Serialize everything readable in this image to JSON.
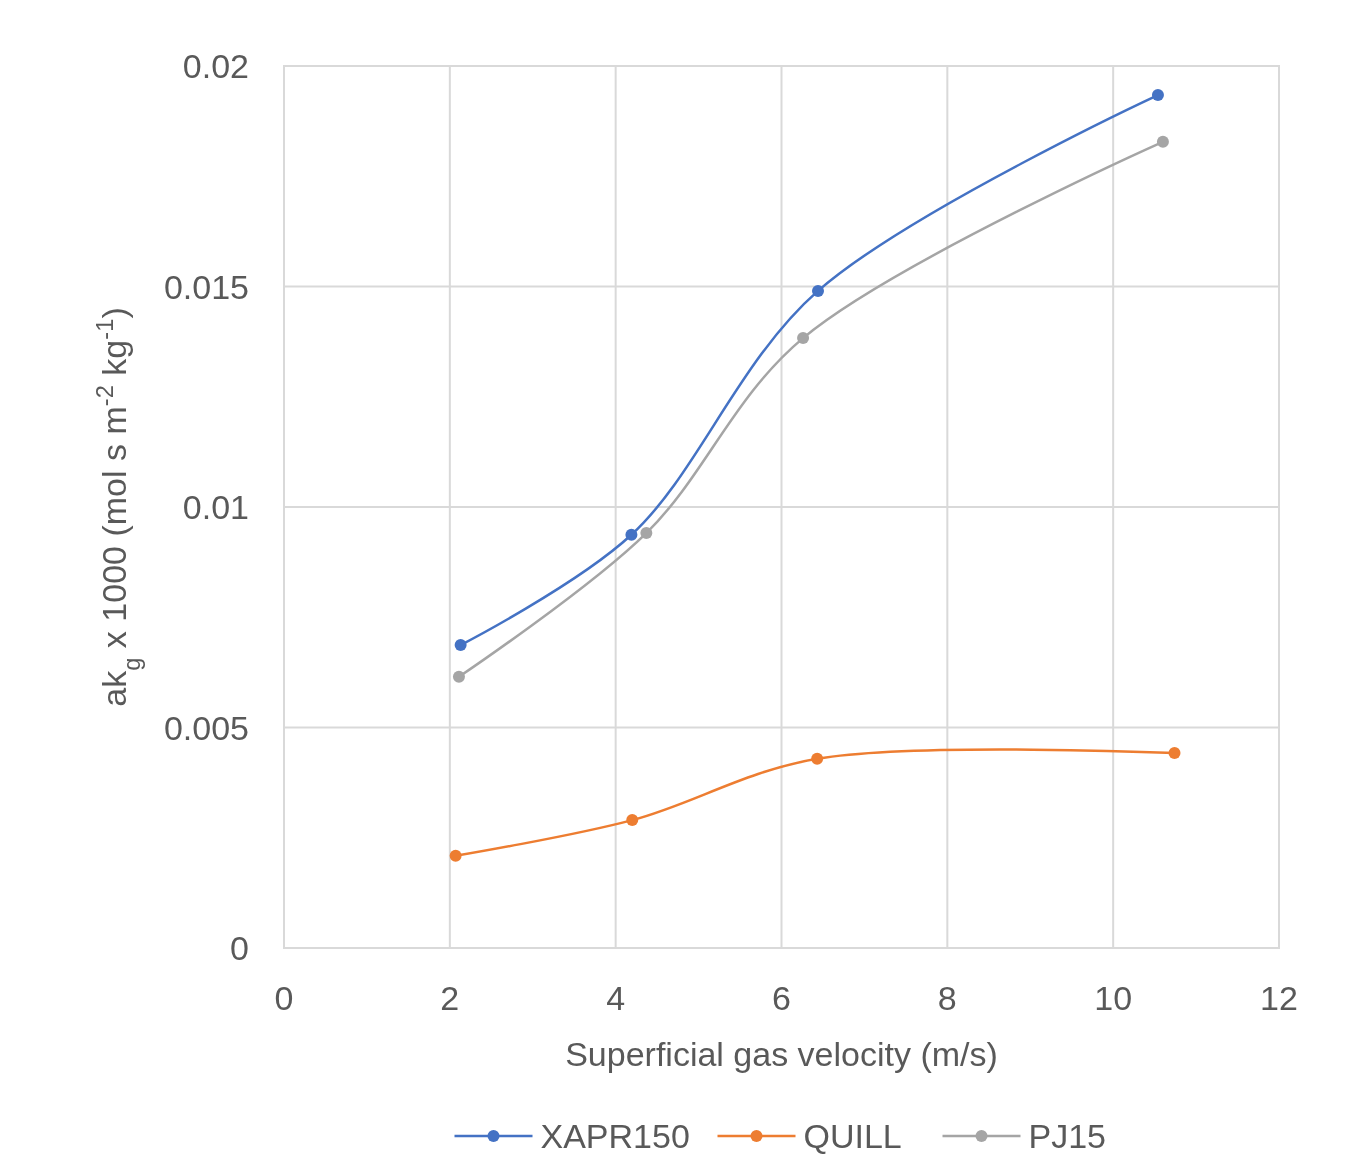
{
  "chart_data": {
    "type": "line",
    "xlabel": "Superficial gas velocity (m/s)",
    "ylabel": "ak$_{g}$ x 1000 (mol s m$^{-2}$ kg$^{-1}$)",
    "xlim": [
      0,
      12
    ],
    "xticks": [
      0,
      2,
      4,
      6,
      8,
      10,
      12
    ],
    "ylim": [
      0,
      0.02
    ],
    "yticks": [
      0,
      0.005,
      0.01,
      0.015,
      0.02
    ],
    "grid": true,
    "legend": "bottom",
    "marker": "circle",
    "line_style": "solid",
    "series": [
      {
        "name": "XAPR150",
        "color": "#4472c4",
        "x": [
          2.13,
          4.19,
          6.44,
          10.54
        ],
        "values": [
          0.00687,
          0.00937,
          0.0149,
          0.01934
        ]
      },
      {
        "name": "QUILL",
        "color": "#ed7d31",
        "x": [
          2.07,
          4.2,
          6.43,
          10.74
        ],
        "values": [
          0.00209,
          0.0029,
          0.00429,
          0.00442
        ]
      },
      {
        "name": "PJ15",
        "color": "#a5a5a5",
        "x": [
          2.11,
          4.37,
          6.26,
          10.6
        ],
        "values": [
          0.00615,
          0.00941,
          0.01383,
          0.01828
        ]
      }
    ]
  }
}
